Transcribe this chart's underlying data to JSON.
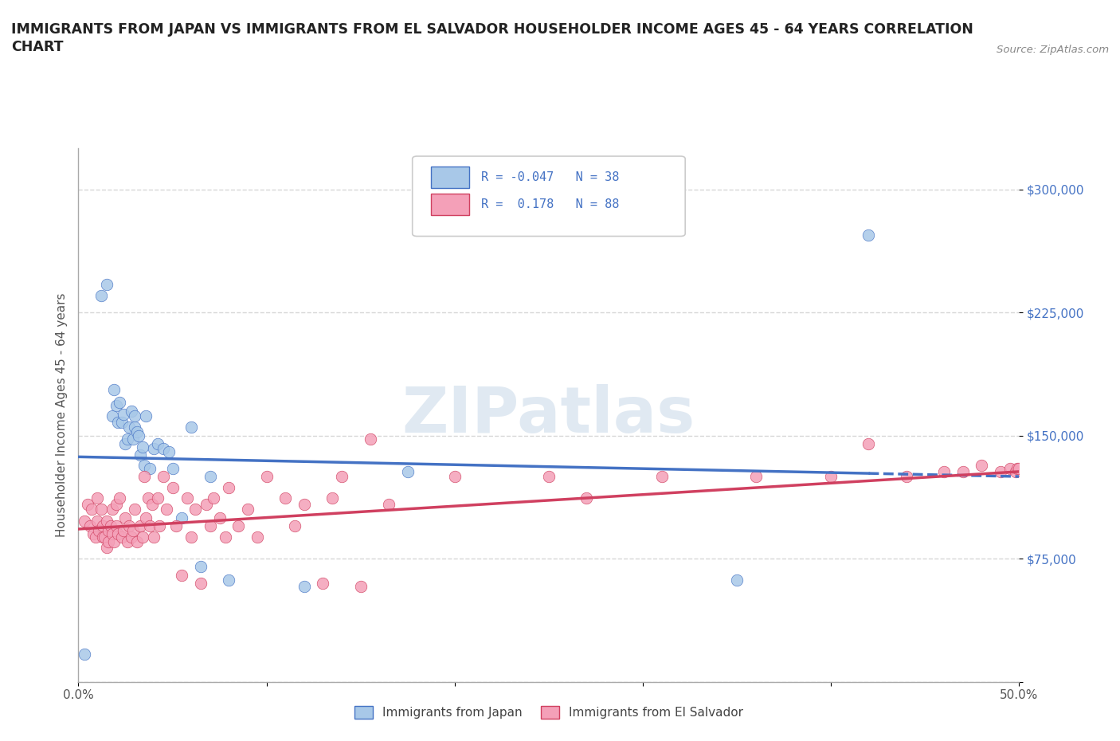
{
  "title": "IMMIGRANTS FROM JAPAN VS IMMIGRANTS FROM EL SALVADOR HOUSEHOLDER INCOME AGES 45 - 64 YEARS CORRELATION\nCHART",
  "source_text": "Source: ZipAtlas.com",
  "ylabel": "Householder Income Ages 45 - 64 years",
  "xlim": [
    0.0,
    0.5
  ],
  "ylim": [
    0,
    325000
  ],
  "yticks": [
    0,
    75000,
    150000,
    225000,
    300000
  ],
  "ytick_labels": [
    "",
    "$75,000",
    "$150,000",
    "$225,000",
    "$300,000"
  ],
  "xticks": [
    0.0,
    0.1,
    0.2,
    0.3,
    0.4,
    0.5
  ],
  "xtick_labels": [
    "0.0%",
    "",
    "",
    "",
    "",
    "50.0%"
  ],
  "watermark": "ZIPatlas",
  "color_japan": "#a8c8e8",
  "color_salvador": "#f4a0b8",
  "color_japan_line": "#4472c4",
  "color_salvador_line": "#d04060",
  "japan_scatter_x": [
    0.003,
    0.012,
    0.015,
    0.018,
    0.019,
    0.02,
    0.021,
    0.022,
    0.023,
    0.024,
    0.025,
    0.026,
    0.027,
    0.028,
    0.029,
    0.03,
    0.03,
    0.031,
    0.032,
    0.033,
    0.034,
    0.035,
    0.036,
    0.038,
    0.04,
    0.042,
    0.045,
    0.048,
    0.05,
    0.055,
    0.06,
    0.065,
    0.07,
    0.08,
    0.12,
    0.175,
    0.35,
    0.42
  ],
  "japan_scatter_y": [
    17000,
    235000,
    242000,
    162000,
    178000,
    168000,
    158000,
    170000,
    158000,
    163000,
    145000,
    148000,
    155000,
    165000,
    148000,
    155000,
    162000,
    152000,
    150000,
    138000,
    143000,
    132000,
    162000,
    130000,
    142000,
    145000,
    142000,
    140000,
    130000,
    100000,
    155000,
    70000,
    125000,
    62000,
    58000,
    128000,
    62000,
    272000
  ],
  "salvador_scatter_x": [
    0.003,
    0.005,
    0.006,
    0.007,
    0.008,
    0.009,
    0.01,
    0.01,
    0.011,
    0.012,
    0.013,
    0.013,
    0.014,
    0.015,
    0.015,
    0.016,
    0.016,
    0.017,
    0.018,
    0.018,
    0.019,
    0.02,
    0.02,
    0.021,
    0.022,
    0.023,
    0.024,
    0.025,
    0.026,
    0.027,
    0.028,
    0.029,
    0.03,
    0.031,
    0.033,
    0.034,
    0.035,
    0.036,
    0.037,
    0.038,
    0.039,
    0.04,
    0.042,
    0.043,
    0.045,
    0.047,
    0.05,
    0.052,
    0.055,
    0.058,
    0.06,
    0.062,
    0.065,
    0.068,
    0.07,
    0.072,
    0.075,
    0.078,
    0.08,
    0.085,
    0.09,
    0.095,
    0.1,
    0.11,
    0.115,
    0.12,
    0.13,
    0.135,
    0.14,
    0.15,
    0.155,
    0.165,
    0.2,
    0.25,
    0.27,
    0.31,
    0.36,
    0.4,
    0.42,
    0.44,
    0.46,
    0.47,
    0.48,
    0.49,
    0.495,
    0.498,
    0.499,
    0.5
  ],
  "salvador_scatter_y": [
    98000,
    108000,
    95000,
    105000,
    90000,
    88000,
    112000,
    98000,
    92000,
    105000,
    88000,
    95000,
    88000,
    98000,
    82000,
    92000,
    85000,
    95000,
    90000,
    105000,
    85000,
    95000,
    108000,
    90000,
    112000,
    88000,
    92000,
    100000,
    85000,
    95000,
    88000,
    92000,
    105000,
    85000,
    95000,
    88000,
    125000,
    100000,
    112000,
    95000,
    108000,
    88000,
    112000,
    95000,
    125000,
    105000,
    118000,
    95000,
    65000,
    112000,
    88000,
    105000,
    60000,
    108000,
    95000,
    112000,
    100000,
    88000,
    118000,
    95000,
    105000,
    88000,
    125000,
    112000,
    95000,
    108000,
    60000,
    112000,
    125000,
    58000,
    148000,
    108000,
    125000,
    125000,
    112000,
    125000,
    125000,
    125000,
    145000,
    125000,
    128000,
    128000,
    132000,
    128000,
    130000,
    128000,
    130000,
    130000
  ]
}
